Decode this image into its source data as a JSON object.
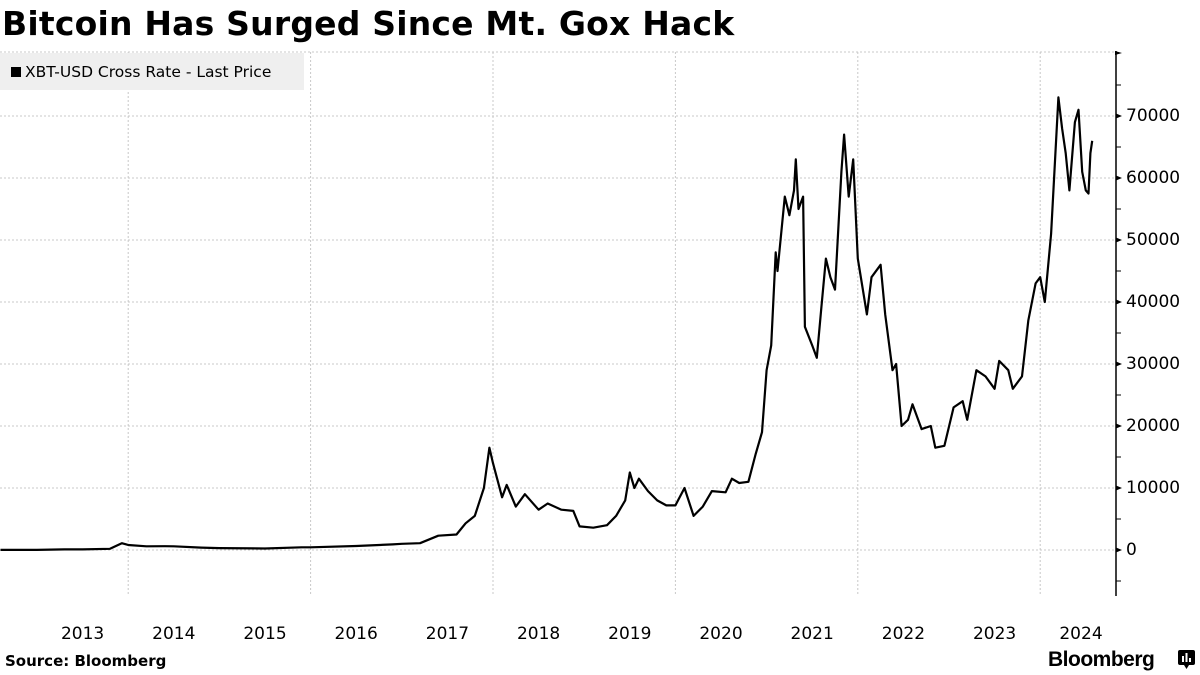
{
  "title": "Bitcoin Has Surged Since Mt. Gox Hack",
  "legend": {
    "label": "XBT-USD Cross Rate - Last Price",
    "swatch_color": "#000000"
  },
  "source": "Source: Bloomberg",
  "brand": "Bloomberg",
  "colors": {
    "line": "#000000",
    "grid": "#c8c8c8",
    "legend_bg": "#efefef",
    "axis": "#000000"
  },
  "chart_data": {
    "type": "line",
    "title": "Bitcoin Has Surged Since Mt. Gox Hack",
    "xlabel": "",
    "ylabel": "",
    "ylim": [
      -7000,
      80000
    ],
    "yticks": [
      0,
      10000,
      20000,
      30000,
      40000,
      50000,
      60000,
      70000
    ],
    "ytick_labels": [
      "0",
      "10000",
      "20000",
      "30000",
      "40000",
      "50000",
      "60000",
      "70000"
    ],
    "xticks": [
      "2013",
      "2014",
      "2015",
      "2016",
      "2017",
      "2018",
      "2019",
      "2020",
      "2021",
      "2022",
      "2023",
      "2024"
    ],
    "xlim": [
      2012.6,
      2024.6
    ],
    "grid": true,
    "legend_position": "top-left",
    "y_axis_position": "right",
    "series": [
      {
        "name": "XBT-USD Cross Rate - Last Price",
        "x": [
          2012.6,
          2013.0,
          2013.3,
          2013.5,
          2013.8,
          2013.93,
          2014.0,
          2014.2,
          2014.4,
          2014.5,
          2014.8,
          2015.0,
          2015.5,
          2015.9,
          2016.0,
          2016.5,
          2016.9,
          2017.0,
          2017.2,
          2017.4,
          2017.6,
          2017.7,
          2017.8,
          2017.9,
          2017.96,
          2018.0,
          2018.1,
          2018.15,
          2018.25,
          2018.35,
          2018.5,
          2018.6,
          2018.75,
          2018.88,
          2018.95,
          2019.1,
          2019.25,
          2019.35,
          2019.45,
          2019.5,
          2019.55,
          2019.6,
          2019.7,
          2019.8,
          2019.9,
          2020.0,
          2020.1,
          2020.2,
          2020.3,
          2020.4,
          2020.55,
          2020.62,
          2020.7,
          2020.8,
          2020.88,
          2020.95,
          2021.0,
          2021.05,
          2021.1,
          2021.12,
          2021.2,
          2021.25,
          2021.3,
          2021.32,
          2021.35,
          2021.4,
          2021.42,
          2021.5,
          2021.55,
          2021.6,
          2021.65,
          2021.7,
          2021.75,
          2021.82,
          2021.85,
          2021.9,
          2021.95,
          2022.0,
          2022.1,
          2022.15,
          2022.25,
          2022.3,
          2022.38,
          2022.42,
          2022.48,
          2022.55,
          2022.6,
          2022.7,
          2022.8,
          2022.85,
          2022.95,
          2023.05,
          2023.15,
          2023.2,
          2023.3,
          2023.4,
          2023.5,
          2023.55,
          2023.65,
          2023.7,
          2023.8,
          2023.87,
          2023.95,
          2024.0,
          2024.05,
          2024.12,
          2024.2,
          2024.24,
          2024.28,
          2024.32,
          2024.38,
          2024.42,
          2024.46,
          2024.5,
          2024.53,
          2024.55,
          2024.57
        ],
        "values": [
          10,
          13,
          100,
          90,
          200,
          1100,
          800,
          600,
          620,
          600,
          380,
          300,
          250,
          430,
          430,
          650,
          900,
          1000,
          1100,
          2300,
          2500,
          4300,
          5500,
          10000,
          16500,
          14000,
          8500,
          10500,
          7000,
          9000,
          6500,
          7500,
          6500,
          6300,
          3800,
          3600,
          4000,
          5500,
          8000,
          12500,
          10000,
          11500,
          9500,
          8000,
          7200,
          7200,
          10000,
          5500,
          7000,
          9500,
          9300,
          11500,
          10800,
          11000,
          15500,
          19000,
          29000,
          33000,
          48000,
          45000,
          57000,
          54000,
          58000,
          63000,
          55000,
          57000,
          36000,
          33000,
          31000,
          39000,
          47000,
          44000,
          42000,
          61000,
          67000,
          57000,
          63000,
          47000,
          38000,
          44000,
          46000,
          38000,
          29000,
          30000,
          20000,
          21000,
          23500,
          19500,
          20000,
          16500,
          16800,
          23000,
          24000,
          21000,
          29000,
          28000,
          26000,
          30500,
          29000,
          26000,
          28000,
          37000,
          43000,
          44000,
          40000,
          51000,
          73000,
          68000,
          64000,
          58000,
          69000,
          71000,
          61000,
          58000,
          57500,
          64000,
          66000
        ]
      }
    ]
  },
  "yaxis_labels": [
    "70000",
    "60000",
    "50000",
    "40000",
    "30000",
    "20000",
    "10000",
    "0"
  ],
  "xaxis_labels": [
    "2013",
    "2014",
    "2015",
    "2016",
    "2017",
    "2018",
    "2019",
    "2020",
    "2021",
    "2022",
    "2023",
    "2024"
  ]
}
